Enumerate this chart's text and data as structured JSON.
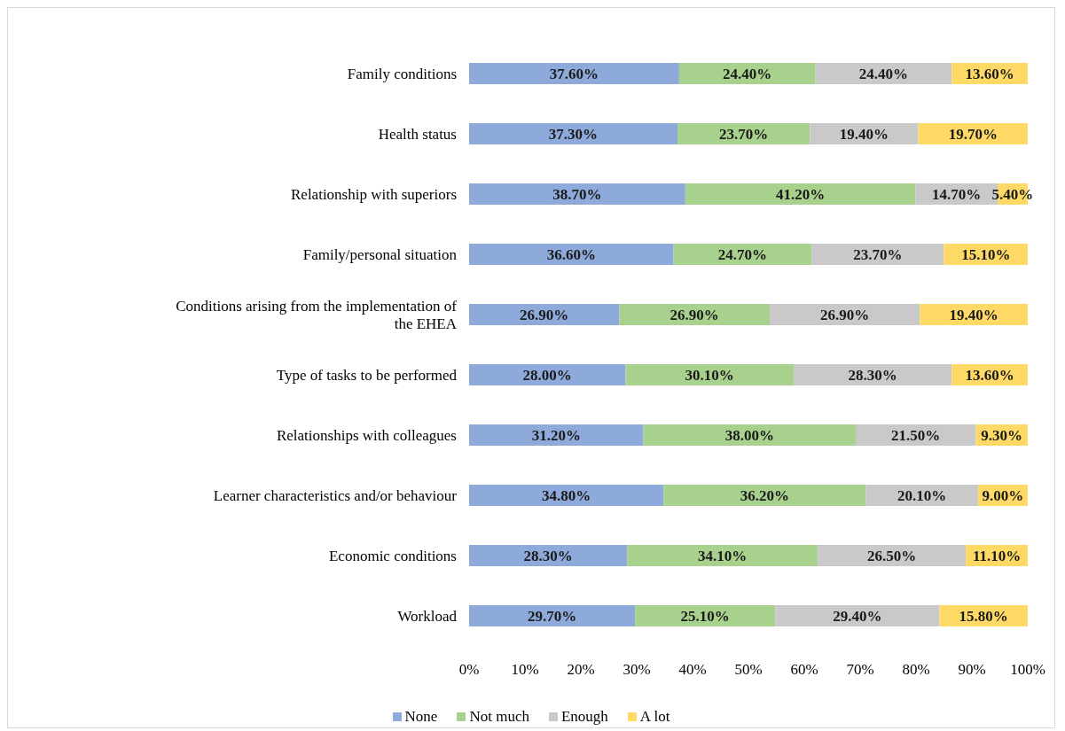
{
  "chart_data": {
    "type": "bar",
    "orientation": "horizontal",
    "stacked": true,
    "categories": [
      "Family conditions",
      "Health status",
      "Relationship with superiors",
      "Family/personal situation",
      "Conditions arising from the implementation of the EHEA",
      "Type of tasks to be performed",
      "Relationships with colleagues",
      "Learner characteristics and/or behaviour",
      "Economic conditions",
      "Workload"
    ],
    "series": [
      {
        "name": "None",
        "color": "#8eaadb",
        "values": [
          37.6,
          37.3,
          38.7,
          36.6,
          26.9,
          28.0,
          31.2,
          34.8,
          28.3,
          29.7
        ],
        "value_labels": [
          "37.60%",
          "37.30%",
          "38.70%",
          "36.60%",
          "26.90%",
          "28.00%",
          "31.20%",
          "34.80%",
          "28.30%",
          "29.70%"
        ]
      },
      {
        "name": "Not much",
        "color": "#a9d18e",
        "values": [
          24.4,
          23.7,
          41.2,
          24.7,
          26.9,
          30.1,
          38.0,
          36.2,
          34.1,
          25.1
        ],
        "value_labels": [
          "24.40%",
          "23.70%",
          "41.20%",
          "24.70%",
          "26.90%",
          "30.10%",
          "38.00%",
          "36.20%",
          "34.10%",
          "25.10%"
        ]
      },
      {
        "name": "Enough",
        "color": "#c9c9c9",
        "values": [
          24.4,
          19.4,
          14.7,
          23.7,
          26.9,
          28.3,
          21.5,
          20.1,
          26.5,
          29.4
        ],
        "value_labels": [
          "24.40%",
          "19.40%",
          "14.70%",
          "23.70%",
          "26.90%",
          "28.30%",
          "21.50%",
          "20.10%",
          "26.50%",
          "29.40%"
        ]
      },
      {
        "name": "A lot",
        "color": "#ffd966",
        "values": [
          13.6,
          19.7,
          5.4,
          15.1,
          19.4,
          13.6,
          9.3,
          9.0,
          11.1,
          15.8
        ],
        "value_labels": [
          "13.60%",
          "19.70%",
          "5.40%",
          "15.10%",
          "19.40%",
          "13.60%",
          "9.30%",
          "9.00%",
          "11.10%",
          "15.80%"
        ]
      }
    ],
    "xlim": [
      0,
      100
    ],
    "xticks": [
      {
        "value": 0,
        "label": "0%"
      },
      {
        "value": 10,
        "label": "10%"
      },
      {
        "value": 20,
        "label": "20%"
      },
      {
        "value": 30,
        "label": "30%"
      },
      {
        "value": 40,
        "label": "40%"
      },
      {
        "value": 50,
        "label": "50%"
      },
      {
        "value": 60,
        "label": "60%"
      },
      {
        "value": 70,
        "label": "70%"
      },
      {
        "value": 80,
        "label": "80%"
      },
      {
        "value": 90,
        "label": "90%"
      },
      {
        "value": 100,
        "label": "100%"
      }
    ],
    "legend": "bottom"
  }
}
